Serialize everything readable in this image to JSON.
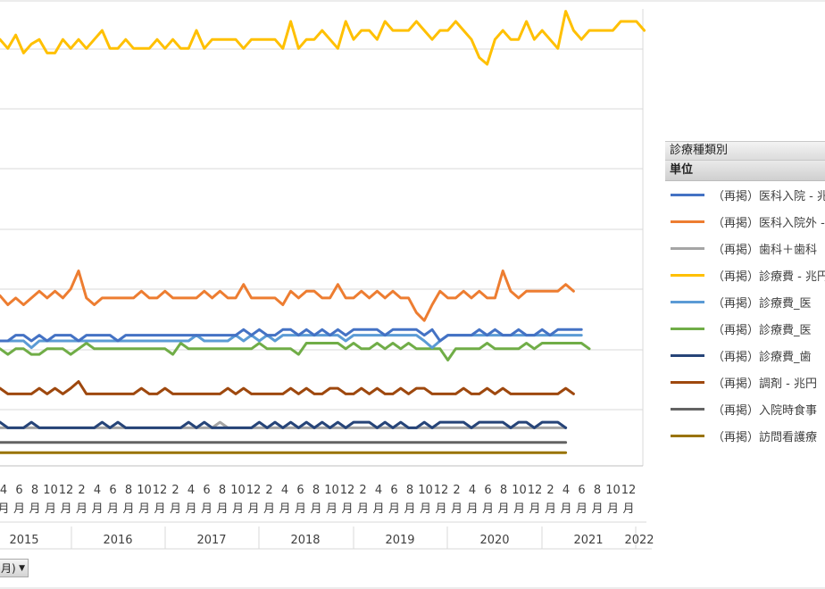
{
  "legend": {
    "header": "診療種類別",
    "subheader": "単位",
    "items": [
      {
        "label": "（再掲）医科入院 - 兆円",
        "color": "#4472C4"
      },
      {
        "label": "（再掲）医科入院外 - 兆円",
        "color": "#ED7D31"
      },
      {
        "label": "（再掲）歯科＋歯科",
        "color": "#A5A5A5"
      },
      {
        "label": "（再掲）診療費 - 兆円",
        "color": "#FFC000"
      },
      {
        "label": "（再掲）診療費_医",
        "color": "#5B9BD5"
      },
      {
        "label": "（再掲）診療費_医",
        "color": "#70AD47"
      },
      {
        "label": "（再掲）診療費_歯",
        "color": "#264478"
      },
      {
        "label": "（再掲）調剤 - 兆円",
        "color": "#9E480E"
      },
      {
        "label": "（再掲）入院時食事",
        "color": "#636363"
      },
      {
        "label": "（再掲）訪問看護療",
        "color": "#997300"
      }
    ]
  },
  "field_button": {
    "label": "月)",
    "arrow": "▼"
  },
  "chart_data": {
    "type": "line",
    "month_labels": [
      "2",
      "4",
      "6",
      "8",
      "10",
      "12"
    ],
    "month_unit": "月",
    "year_labels": [
      "2015",
      "2016",
      "2017",
      "2018",
      "2019",
      "2020",
      "2021",
      "2022"
    ],
    "grid": true,
    "legend_position": "right",
    "series": [
      {
        "name": "（再掲）診療費 - 兆円",
        "color": "#FFC000",
        "values": [
          3.69,
          3.61,
          3.73,
          3.57,
          3.65,
          3.69,
          3.57,
          3.57,
          3.69,
          3.61,
          3.69,
          3.61,
          3.69,
          3.77,
          3.61,
          3.61,
          3.69,
          3.61,
          3.61,
          3.61,
          3.69,
          3.61,
          3.69,
          3.61,
          3.61,
          3.77,
          3.61,
          3.69,
          3.69,
          3.69,
          3.69,
          3.61,
          3.69,
          3.69,
          3.69,
          3.69,
          3.61,
          3.85,
          3.61,
          3.69,
          3.69,
          3.77,
          3.69,
          3.61,
          3.85,
          3.69,
          3.77,
          3.77,
          3.69,
          3.85,
          3.77,
          3.77,
          3.77,
          3.85,
          3.77,
          3.69,
          3.77,
          3.77,
          3.85,
          3.77,
          3.69,
          3.53,
          3.47,
          3.69,
          3.77,
          3.69,
          3.69,
          3.85,
          3.69,
          3.77,
          3.69,
          3.61,
          3.94,
          3.77,
          3.69,
          3.77,
          3.77,
          3.77,
          3.77,
          3.85,
          3.85,
          3.85,
          3.77
        ]
      },
      {
        "name": "（再掲）医科入院外 - 兆円",
        "color": "#ED7D31",
        "values": [
          1.42,
          1.34,
          1.4,
          1.34,
          1.4,
          1.46,
          1.4,
          1.46,
          1.4,
          1.48,
          1.64,
          1.4,
          1.34,
          1.4,
          1.4,
          1.4,
          1.4,
          1.4,
          1.46,
          1.4,
          1.4,
          1.46,
          1.4,
          1.4,
          1.4,
          1.4,
          1.46,
          1.4,
          1.46,
          1.4,
          1.4,
          1.52,
          1.4,
          1.4,
          1.4,
          1.4,
          1.34,
          1.46,
          1.4,
          1.46,
          1.46,
          1.4,
          1.4,
          1.52,
          1.4,
          1.4,
          1.46,
          1.4,
          1.46,
          1.4,
          1.46,
          1.4,
          1.4,
          1.27,
          1.2,
          1.34,
          1.46,
          1.4,
          1.4,
          1.46,
          1.4,
          1.46,
          1.4,
          1.4,
          1.64,
          1.46,
          1.4,
          1.46,
          1.46,
          1.46,
          1.46,
          1.46,
          1.52,
          1.46
        ]
      },
      {
        "name": "（再掲）医科入院 - 兆円",
        "color": "#4472C4",
        "values": [
          1.02,
          1.02,
          1.07,
          1.07,
          1.02,
          1.07,
          1.02,
          1.07,
          1.07,
          1.07,
          1.02,
          1.07,
          1.07,
          1.07,
          1.07,
          1.02,
          1.07,
          1.07,
          1.07,
          1.07,
          1.07,
          1.07,
          1.07,
          1.07,
          1.07,
          1.07,
          1.07,
          1.07,
          1.07,
          1.07,
          1.07,
          1.12,
          1.07,
          1.12,
          1.07,
          1.07,
          1.12,
          1.12,
          1.07,
          1.12,
          1.07,
          1.12,
          1.07,
          1.12,
          1.07,
          1.12,
          1.12,
          1.12,
          1.12,
          1.07,
          1.12,
          1.12,
          1.12,
          1.12,
          1.07,
          1.12,
          1.02,
          1.07,
          1.07,
          1.07,
          1.07,
          1.12,
          1.07,
          1.12,
          1.07,
          1.07,
          1.12,
          1.07,
          1.07,
          1.12,
          1.07,
          1.12,
          1.12,
          1.12,
          1.12
        ]
      },
      {
        "name": "（再掲）診療費_医",
        "color": "#5B9BD5",
        "values": [
          1.02,
          1.02,
          1.02,
          1.02,
          0.96,
          1.02,
          1.02,
          1.02,
          1.02,
          1.02,
          1.02,
          1.02,
          1.02,
          1.02,
          1.02,
          1.02,
          1.02,
          1.02,
          1.02,
          1.02,
          1.02,
          1.02,
          1.02,
          1.02,
          1.02,
          1.07,
          1.02,
          1.02,
          1.02,
          1.02,
          1.07,
          1.02,
          1.07,
          1.02,
          1.07,
          1.02,
          1.07,
          1.07,
          1.07,
          1.07,
          1.07,
          1.07,
          1.07,
          1.07,
          1.02,
          1.07,
          1.07,
          1.07,
          1.07,
          1.07,
          1.07,
          1.07,
          1.07,
          1.07,
          1.02,
          0.96,
          1.02,
          1.07,
          1.07,
          1.07,
          1.07,
          1.07,
          1.07,
          1.07,
          1.07,
          1.07,
          1.07,
          1.07,
          1.07,
          1.07,
          1.07,
          1.07,
          1.07,
          1.07,
          1.07
        ]
      },
      {
        "name": "（再掲）診療費_医",
        "color": "#70AD47",
        "values": [
          0.95,
          0.9,
          0.95,
          0.95,
          0.9,
          0.9,
          0.95,
          0.95,
          0.95,
          0.9,
          0.95,
          1.0,
          0.95,
          0.95,
          0.95,
          0.95,
          0.95,
          0.95,
          0.95,
          0.95,
          0.95,
          0.95,
          0.9,
          1.0,
          0.95,
          0.95,
          0.95,
          0.95,
          0.95,
          0.95,
          0.95,
          0.95,
          0.95,
          1.0,
          0.95,
          0.95,
          0.95,
          0.95,
          0.9,
          1.0,
          1.0,
          1.0,
          1.0,
          1.0,
          0.95,
          1.0,
          0.95,
          0.95,
          1.0,
          0.95,
          1.0,
          0.95,
          1.0,
          0.95,
          0.95,
          0.95,
          0.95,
          0.85,
          0.95,
          0.95,
          0.95,
          0.95,
          1.0,
          0.95,
          0.95,
          0.95,
          0.95,
          1.0,
          0.95,
          1.0,
          1.0,
          1.0,
          1.0,
          1.0,
          1.0,
          0.95
        ]
      },
      {
        "name": "（再掲）調剤 - 兆円",
        "color": "#9E480E",
        "values": [
          0.6,
          0.55,
          0.55,
          0.55,
          0.55,
          0.6,
          0.55,
          0.6,
          0.55,
          0.6,
          0.66,
          0.55,
          0.55,
          0.55,
          0.55,
          0.55,
          0.55,
          0.55,
          0.6,
          0.55,
          0.55,
          0.6,
          0.55,
          0.55,
          0.55,
          0.55,
          0.55,
          0.55,
          0.55,
          0.6,
          0.55,
          0.6,
          0.55,
          0.55,
          0.55,
          0.55,
          0.55,
          0.6,
          0.55,
          0.6,
          0.55,
          0.55,
          0.6,
          0.6,
          0.55,
          0.55,
          0.6,
          0.55,
          0.6,
          0.55,
          0.55,
          0.6,
          0.55,
          0.6,
          0.6,
          0.55,
          0.55,
          0.55,
          0.55,
          0.6,
          0.55,
          0.55,
          0.6,
          0.55,
          0.6,
          0.55,
          0.55,
          0.55,
          0.55,
          0.55,
          0.55,
          0.55,
          0.6,
          0.55
        ]
      },
      {
        "name": "（再掲）診療費_歯",
        "color": "#264478",
        "values": [
          0.3,
          0.25,
          0.25,
          0.25,
          0.3,
          0.25,
          0.25,
          0.25,
          0.25,
          0.25,
          0.25,
          0.25,
          0.25,
          0.3,
          0.25,
          0.3,
          0.25,
          0.25,
          0.25,
          0.25,
          0.25,
          0.25,
          0.25,
          0.25,
          0.3,
          0.25,
          0.3,
          0.25,
          0.25,
          0.25,
          0.25,
          0.25,
          0.25,
          0.3,
          0.25,
          0.3,
          0.25,
          0.3,
          0.25,
          0.3,
          0.25,
          0.3,
          0.25,
          0.3,
          0.25,
          0.3,
          0.3,
          0.3,
          0.25,
          0.3,
          0.25,
          0.3,
          0.25,
          0.25,
          0.3,
          0.25,
          0.3,
          0.3,
          0.3,
          0.3,
          0.25,
          0.3,
          0.3,
          0.3,
          0.3,
          0.25,
          0.3,
          0.3,
          0.25,
          0.3,
          0.3,
          0.3,
          0.25
        ]
      },
      {
        "name": "（再掲）歯科＋歯科",
        "color": "#A5A5A5",
        "values": [
          0.25,
          0.25,
          0.25,
          0.25,
          0.25,
          0.25,
          0.25,
          0.25,
          0.25,
          0.25,
          0.25,
          0.25,
          0.25,
          0.25,
          0.25,
          0.25,
          0.25,
          0.25,
          0.25,
          0.25,
          0.25,
          0.25,
          0.25,
          0.25,
          0.25,
          0.25,
          0.25,
          0.25,
          0.3,
          0.25,
          0.25,
          0.25,
          0.25,
          0.25,
          0.25,
          0.25,
          0.25,
          0.25,
          0.25,
          0.25,
          0.25,
          0.25,
          0.25,
          0.25,
          0.25,
          0.25,
          0.25,
          0.25,
          0.25,
          0.25,
          0.25,
          0.25,
          0.25,
          0.25,
          0.25,
          0.25,
          0.25,
          0.25,
          0.25,
          0.25,
          0.25,
          0.25,
          0.25,
          0.25,
          0.25,
          0.25,
          0.25,
          0.25,
          0.25,
          0.25,
          0.25,
          0.25,
          0.25
        ]
      },
      {
        "name": "（再掲）入院時食事",
        "color": "#636363",
        "values": [
          0.12,
          0.12,
          0.12,
          0.12,
          0.12,
          0.12,
          0.12,
          0.12,
          0.12,
          0.12,
          0.12,
          0.12,
          0.12,
          0.12,
          0.12,
          0.12,
          0.12,
          0.12,
          0.12,
          0.12,
          0.12,
          0.12,
          0.12,
          0.12,
          0.12,
          0.12,
          0.12,
          0.12,
          0.12,
          0.12,
          0.12,
          0.12,
          0.12,
          0.12,
          0.12,
          0.12,
          0.12,
          0.12,
          0.12,
          0.12,
          0.12,
          0.12,
          0.12,
          0.12,
          0.12,
          0.12,
          0.12,
          0.12,
          0.12,
          0.12,
          0.12,
          0.12,
          0.12,
          0.12,
          0.12,
          0.12,
          0.12,
          0.12,
          0.12,
          0.12,
          0.12,
          0.12,
          0.12,
          0.12,
          0.12,
          0.12,
          0.12,
          0.12,
          0.12,
          0.12,
          0.12,
          0.12,
          0.12
        ]
      },
      {
        "name": "（再掲）訪問看護療",
        "color": "#997300",
        "values": [
          0.03,
          0.03,
          0.03,
          0.03,
          0.03,
          0.03,
          0.03,
          0.03,
          0.03,
          0.03,
          0.03,
          0.03,
          0.03,
          0.03,
          0.03,
          0.03,
          0.03,
          0.03,
          0.03,
          0.03,
          0.03,
          0.03,
          0.03,
          0.03,
          0.03,
          0.03,
          0.03,
          0.03,
          0.03,
          0.03,
          0.03,
          0.03,
          0.03,
          0.03,
          0.03,
          0.03,
          0.03,
          0.03,
          0.03,
          0.03,
          0.03,
          0.03,
          0.03,
          0.03,
          0.03,
          0.03,
          0.03,
          0.03,
          0.03,
          0.03,
          0.03,
          0.03,
          0.03,
          0.03,
          0.03,
          0.03,
          0.03,
          0.03,
          0.03,
          0.03,
          0.03,
          0.03,
          0.03,
          0.03,
          0.03,
          0.03,
          0.03,
          0.03,
          0.03,
          0.03,
          0.03,
          0.03,
          0.03
        ]
      }
    ]
  }
}
